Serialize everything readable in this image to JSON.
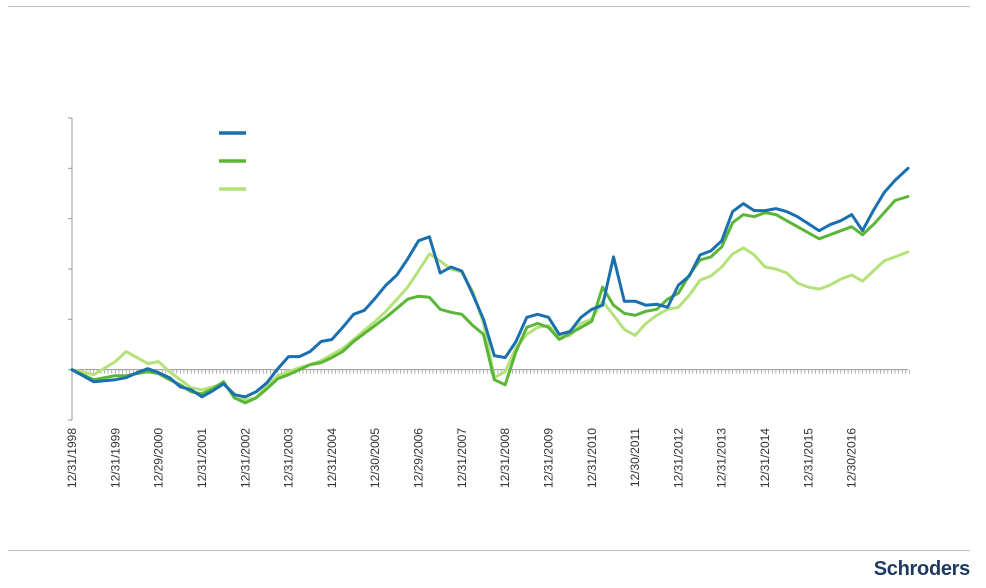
{
  "brand": {
    "logo_text": "Schroders",
    "logo_color": "#1f3a5f"
  },
  "chart_data": {
    "type": "line",
    "title": "",
    "xlabel": "",
    "ylabel": "",
    "y_tick_labels_visible": false,
    "grid": false,
    "legend": {
      "placement": "top-left",
      "labels_visible": false
    },
    "x_tick_labels": [
      "12/31/1998",
      "12/31/1999",
      "12/29/2000",
      "12/31/2001",
      "12/31/2002",
      "12/31/2003",
      "12/31/2004",
      "12/30/2005",
      "12/29/2006",
      "12/31/2007",
      "12/31/2008",
      "12/31/2009",
      "12/31/2010",
      "12/30/2011",
      "12/31/2012",
      "12/31/2013",
      "12/31/2014",
      "12/31/2015",
      "12/30/2016"
    ],
    "x": [
      1998.0,
      1998.5,
      1999.0,
      1999.25,
      1999.5,
      1999.75,
      2000.0,
      2000.25,
      2000.5,
      2000.75,
      2001.0,
      2001.25,
      2001.5,
      2001.75,
      2002.0,
      2002.25,
      2002.5,
      2002.75,
      2003.0,
      2003.25,
      2003.5,
      2003.75,
      2004.0,
      2004.25,
      2004.5,
      2004.75,
      2005.0,
      2005.25,
      2005.5,
      2005.75,
      2006.0,
      2006.25,
      2006.5,
      2006.75,
      2007.0,
      2007.25,
      2007.5,
      2007.75,
      2008.0,
      2008.25,
      2008.5,
      2008.75,
      2009.0,
      2009.25,
      2009.5,
      2009.75,
      2010.0,
      2010.25,
      2010.5,
      2010.75,
      2011.0,
      2011.25,
      2011.5,
      2011.75,
      2012.0,
      2012.25,
      2012.5,
      2012.75,
      2013.0,
      2013.25,
      2013.5,
      2013.75,
      2014.0,
      2014.25,
      2014.5,
      2014.75,
      2015.0,
      2015.25,
      2015.5,
      2015.75,
      2016.0,
      2016.25,
      2016.5,
      2016.75,
      2017.0,
      2017.3
    ],
    "ylim": [
      -0.5,
      4.5
    ],
    "y_ticks": [
      -0.5,
      0,
      0.5,
      1.0,
      1.5,
      2.0,
      2.5
    ],
    "y_axis_cross": 0,
    "series": [
      {
        "color": "#1a6faf",
        "values": [
          0,
          -0.12,
          -0.1,
          -0.08,
          -0.03,
          0.01,
          -0.03,
          -0.08,
          -0.17,
          -0.2,
          -0.27,
          -0.21,
          -0.14,
          -0.25,
          -0.27,
          -0.22,
          -0.13,
          0.01,
          0.13,
          0.13,
          0.18,
          0.28,
          0.3,
          0.42,
          0.55,
          0.59,
          0.71,
          0.84,
          0.94,
          1.1,
          1.28,
          1.32,
          0.96,
          1.02,
          0.98,
          0.75,
          0.5,
          0.14,
          0.12,
          0.28,
          0.52,
          0.55,
          0.52,
          0.35,
          0.38,
          0.52,
          0.6,
          0.64,
          1.12,
          0.68,
          0.68,
          0.64,
          0.65,
          0.62,
          0.84,
          0.93,
          1.14,
          1.18,
          1.28,
          1.57,
          1.65,
          1.58,
          1.58,
          1.6,
          1.57,
          1.52,
          1.45,
          1.38,
          1.44,
          1.48,
          1.54,
          1.38,
          1.58,
          1.76,
          1.88,
          2.0
        ]
      },
      {
        "color": "#5bb637",
        "values": [
          0,
          -0.1,
          -0.06,
          -0.06,
          -0.04,
          -0.02,
          -0.04,
          -0.1,
          -0.15,
          -0.22,
          -0.24,
          -0.19,
          -0.12,
          -0.28,
          -0.33,
          -0.28,
          -0.19,
          -0.09,
          -0.05,
          0.0,
          0.05,
          0.07,
          0.12,
          0.18,
          0.28,
          0.36,
          0.44,
          0.52,
          0.61,
          0.7,
          0.73,
          0.72,
          0.6,
          0.57,
          0.55,
          0.44,
          0.35,
          -0.1,
          -0.15,
          0.18,
          0.42,
          0.46,
          0.42,
          0.3,
          0.36,
          0.42,
          0.48,
          0.82,
          0.64,
          0.56,
          0.54,
          0.58,
          0.6,
          0.7,
          0.76,
          0.94,
          1.09,
          1.12,
          1.22,
          1.46,
          1.54,
          1.52,
          1.56,
          1.54,
          1.48,
          1.42,
          1.36,
          1.3,
          1.34,
          1.38,
          1.42,
          1.34,
          1.44,
          1.56,
          1.68,
          1.72
        ]
      },
      {
        "color": "#b4e27a",
        "values": [
          0,
          -0.05,
          0.08,
          0.18,
          0.12,
          0.06,
          0.08,
          -0.02,
          -0.1,
          -0.18,
          -0.2,
          -0.17,
          -0.14,
          -0.24,
          -0.3,
          -0.28,
          -0.16,
          -0.06,
          -0.02,
          0.02,
          0.05,
          0.09,
          0.15,
          0.21,
          0.3,
          0.39,
          0.48,
          0.58,
          0.7,
          0.82,
          0.98,
          1.15,
          1.08,
          1.0,
          0.97,
          0.78,
          0.46,
          -0.08,
          -0.02,
          0.22,
          0.35,
          0.42,
          0.44,
          0.32,
          0.34,
          0.46,
          0.5,
          0.68,
          0.54,
          0.4,
          0.34,
          0.46,
          0.54,
          0.6,
          0.62,
          0.74,
          0.89,
          0.93,
          1.02,
          1.15,
          1.21,
          1.14,
          1.02,
          1.0,
          0.96,
          0.86,
          0.82,
          0.8,
          0.84,
          0.9,
          0.94,
          0.88,
          0.98,
          1.08,
          1.12,
          1.17
        ]
      }
    ]
  }
}
